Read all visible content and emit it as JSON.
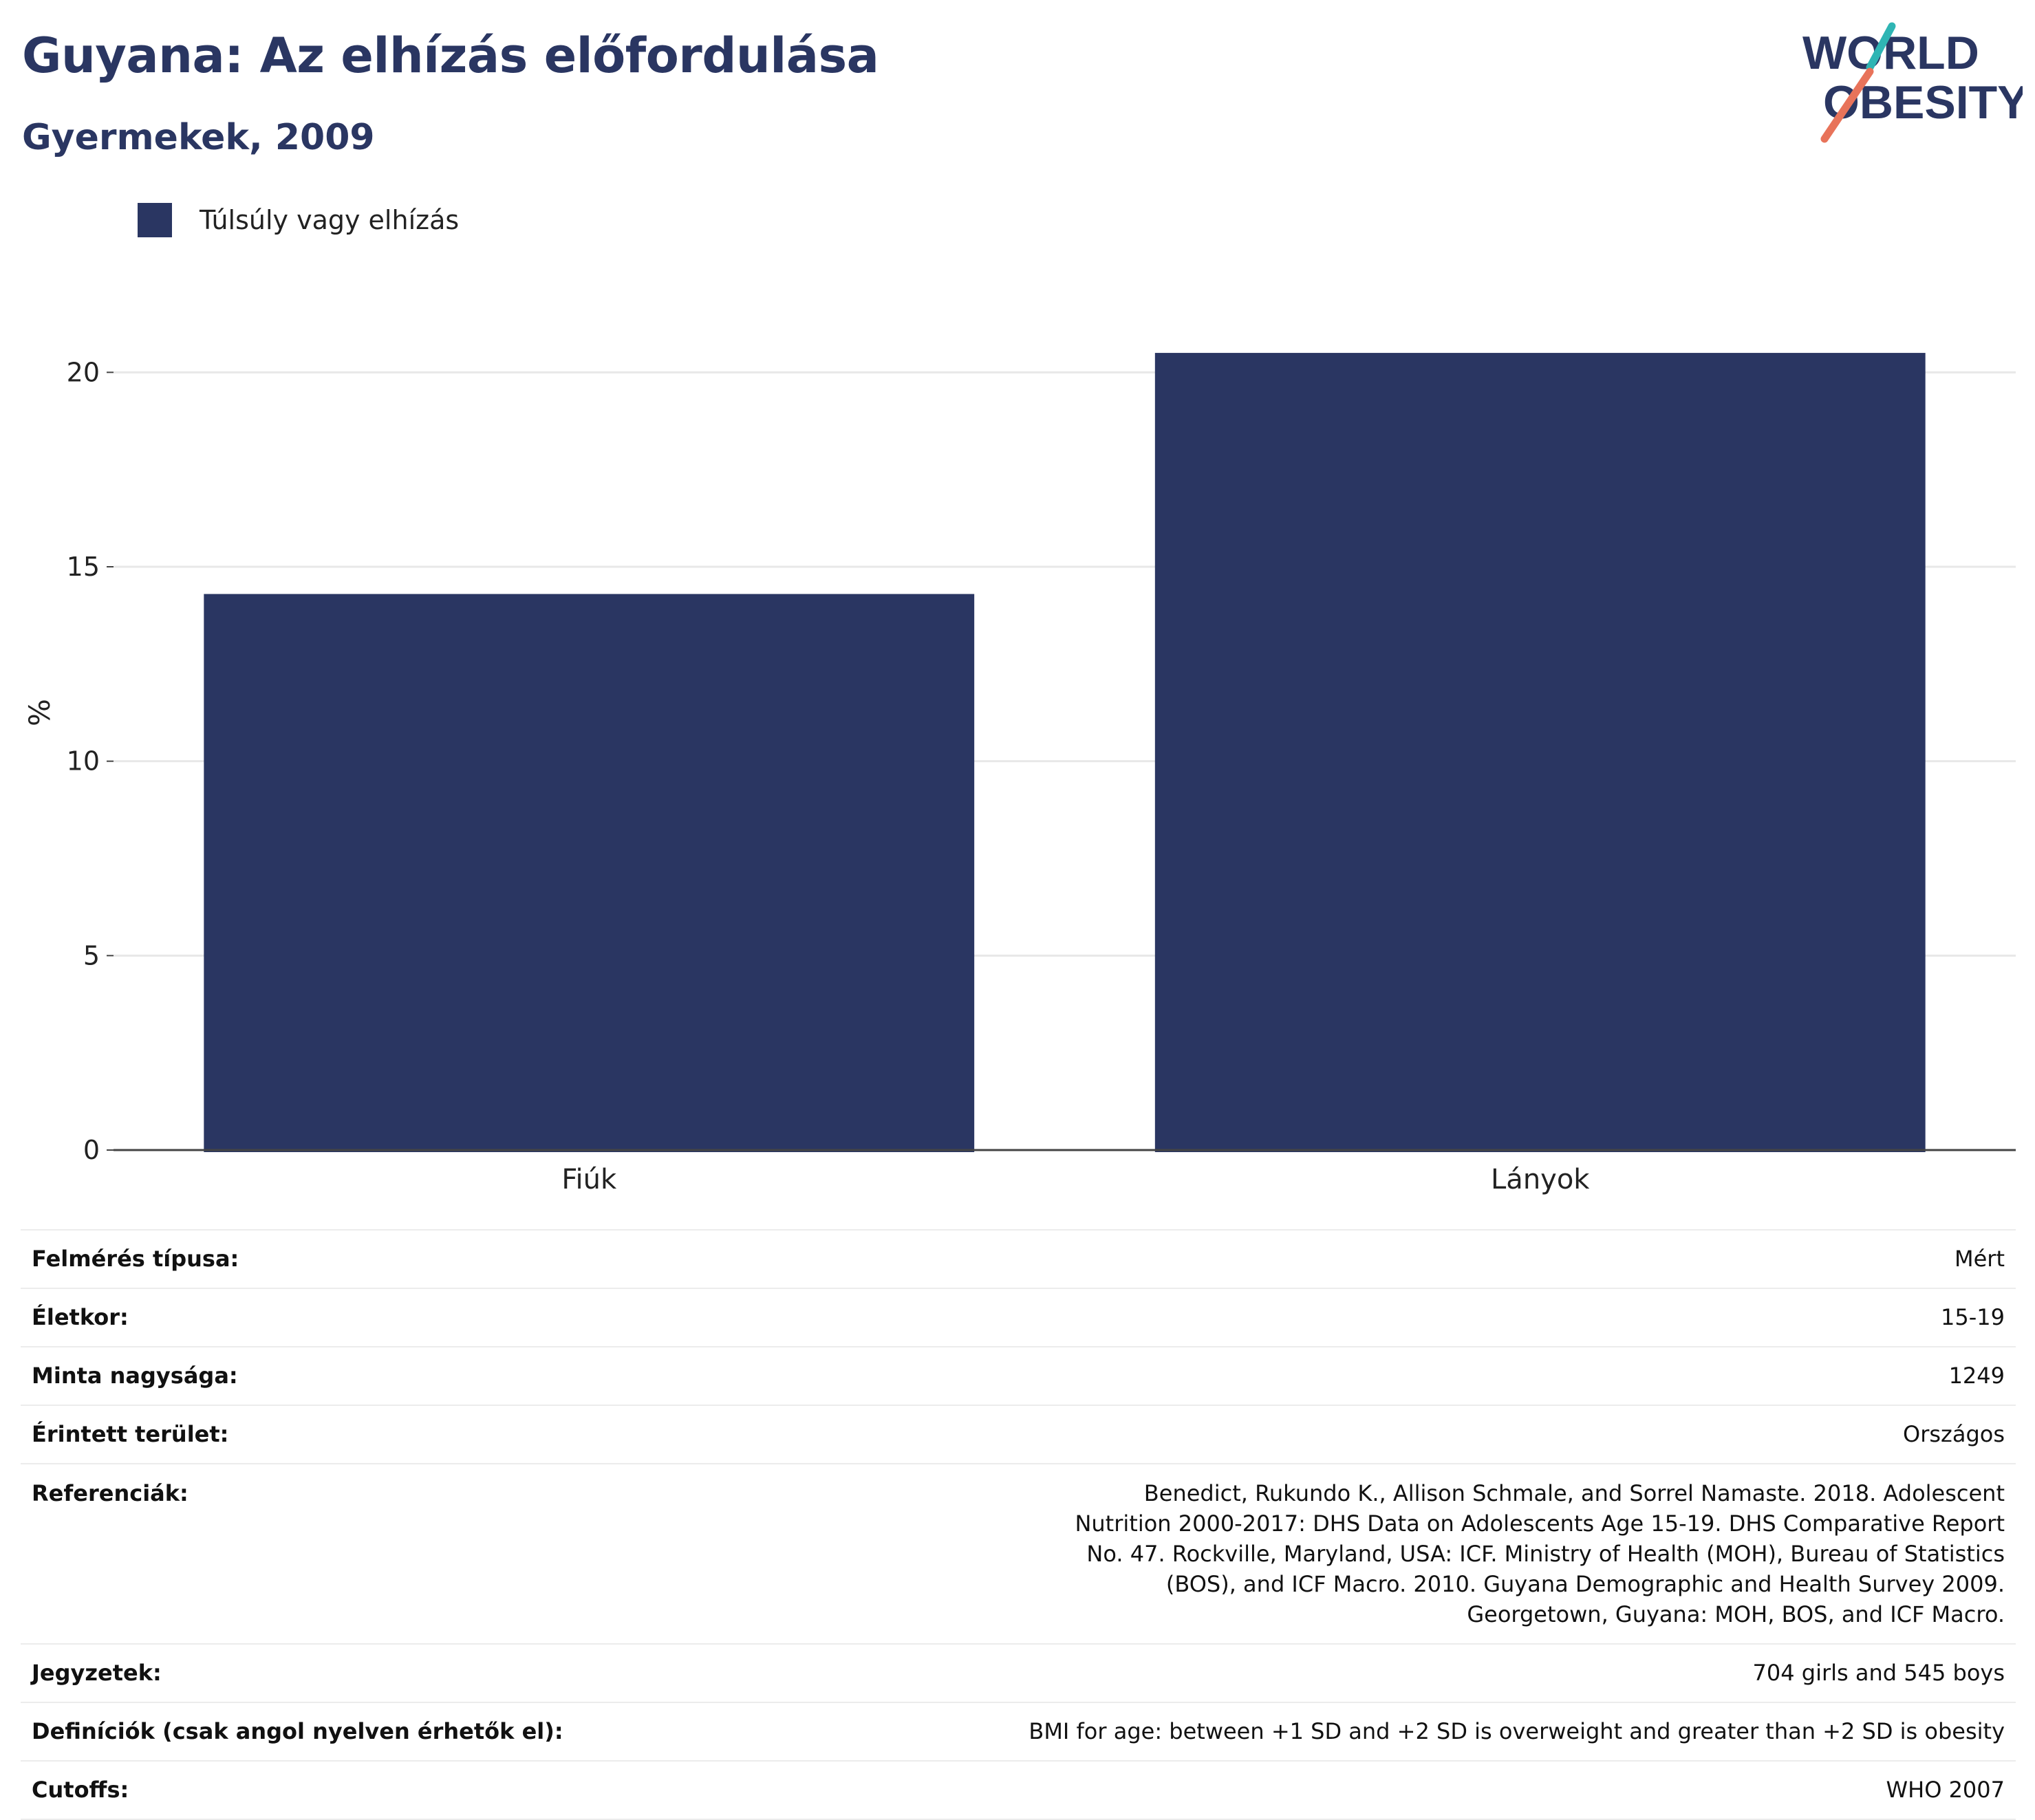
{
  "title": "Guyana: Az elhízás előfordulása",
  "subtitle": "Gyermekek, 2009",
  "logo": {
    "line1": "WORLD",
    "line2": "OBESITY"
  },
  "legend": {
    "label": "Túlsúly vagy elhízás"
  },
  "colors": {
    "bar": "#2a3662",
    "title": "#2a3662",
    "logo_teal": "#2fb5b4",
    "logo_coral": "#e8735a"
  },
  "chart_data": {
    "type": "bar",
    "categories": [
      "Fiúk",
      "Lányok"
    ],
    "series": [
      {
        "name": "Túlsúly vagy elhízás",
        "values": [
          14.3,
          20.5
        ]
      }
    ],
    "ylabel": "%",
    "ylim": [
      0,
      22.5
    ],
    "yticks": [
      0,
      5,
      10,
      15,
      20
    ],
    "grid": true,
    "legend_position": "top-left"
  },
  "info": {
    "survey_type": {
      "label": "Felmérés típusa:",
      "value": "Mért"
    },
    "age": {
      "label": "Életkor:",
      "value": "15-19"
    },
    "sample": {
      "label": "Minta nagysága:",
      "value": "1249"
    },
    "area": {
      "label": "Érintett terület:",
      "value": "Országos"
    },
    "references": {
      "label": "Referenciák:",
      "value": "Benedict, Rukundo K., Allison Schmale, and Sorrel Namaste. 2018. Adolescent Nutrition 2000-2017: DHS Data on Adolescents Age 15-19. DHS Comparative Report No. 47. Rockville, Maryland, USA: ICF. Ministry of Health (MOH), Bureau of Statistics (BOS), and ICF Macro. 2010. Guyana Demographic and Health Survey 2009. Georgetown, Guyana: MOH, BOS, and ICF Macro."
    },
    "notes": {
      "label": "Jegyzetek:",
      "value": "704 girls and 545 boys"
    },
    "definitions": {
      "label": "Definíciók (csak angol nyelven érhetők el):",
      "value": "BMI for age: between +1 SD and +2 SD is overweight and greater than +2 SD is obesity"
    },
    "cutoffs": {
      "label": "Cutoffs:",
      "value": "WHO 2007"
    }
  }
}
